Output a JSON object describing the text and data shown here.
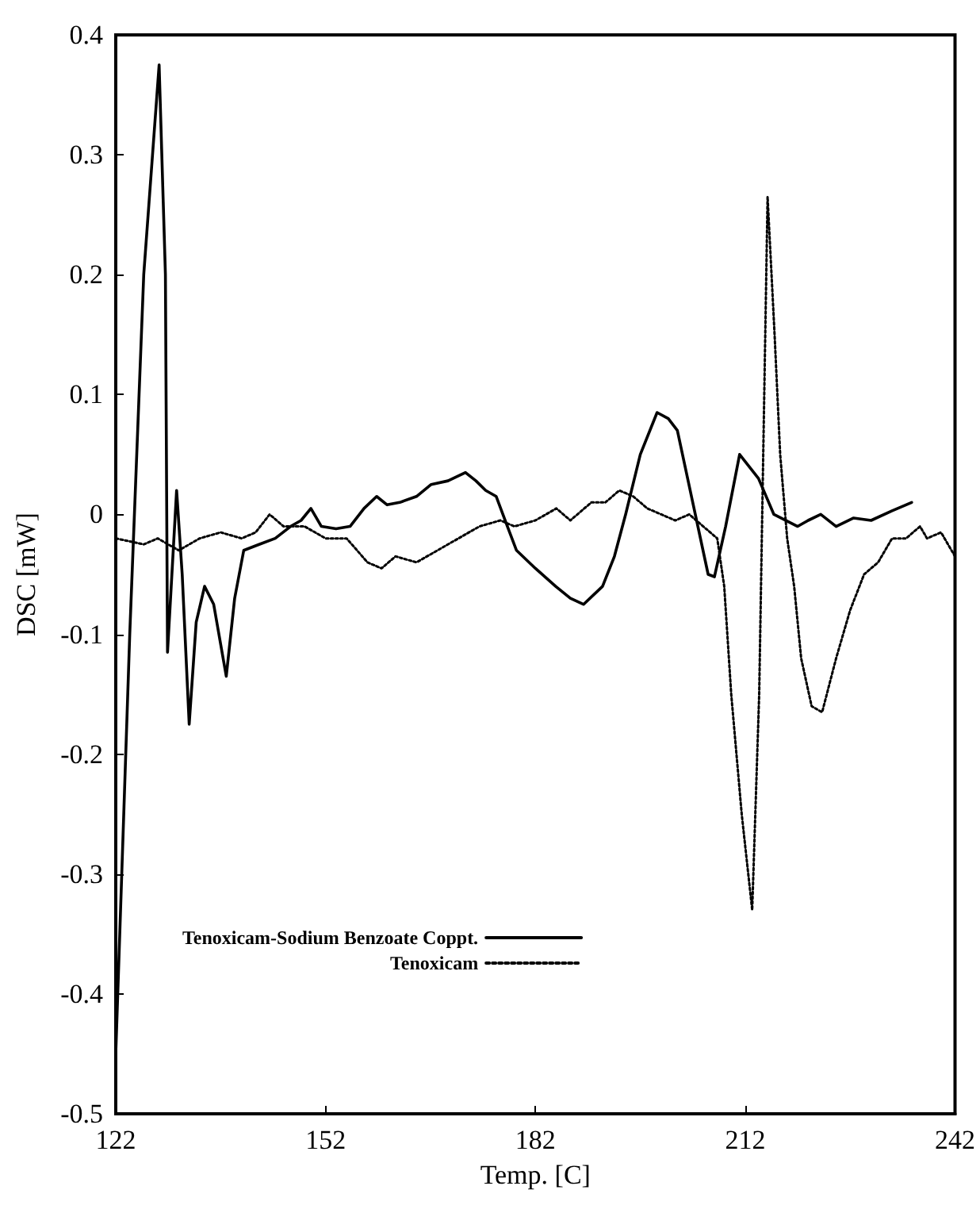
{
  "chart_data": {
    "type": "line",
    "xlabel": "Temp. [C]",
    "ylabel": "DSC [mW]",
    "xlim": [
      122,
      242
    ],
    "xticks": [
      122,
      152,
      182,
      212,
      242
    ],
    "ylim": [
      -0.5,
      0.4
    ],
    "yticks": [
      -0.5,
      -0.4,
      -0.3,
      -0.2,
      -0.1,
      0,
      0.1,
      0.2,
      0.3,
      0.4
    ],
    "grid": false,
    "legend": "bottom left",
    "marker": "none",
    "series": [
      {
        "name": "Tenoxicam-Sodium Benzoate Coppt.",
        "color": "#000000",
        "line_style": "solid",
        "x": [
          122,
          124,
          126,
          128.2,
          129.1,
          129.4,
          130.7,
          131.5,
          132.5,
          133.5,
          134.7,
          136,
          137.8,
          139,
          140.3,
          142.5,
          144.8,
          147,
          148.5,
          149.9,
          151.4,
          153.5,
          155.5,
          157.5,
          159.3,
          160.8,
          162.6,
          165,
          167.1,
          169.5,
          172,
          173.5,
          174.9,
          176.4,
          178,
          179.3,
          182,
          184.9,
          187,
          188.9,
          191.6,
          193.3,
          194.9,
          197,
          199.4,
          201,
          202.3,
          204.5,
          206.7,
          207.6,
          209.2,
          211.2,
          213.9,
          216.1,
          219.5,
          221,
          222.8,
          225,
          227.5,
          230,
          233,
          235.8
        ],
        "values": [
          -0.45,
          -0.1,
          0.2,
          0.375,
          0.2,
          -0.115,
          0.02,
          -0.05,
          -0.175,
          -0.09,
          -0.06,
          -0.075,
          -0.135,
          -0.07,
          -0.03,
          -0.025,
          -0.02,
          -0.01,
          -0.005,
          0.005,
          -0.01,
          -0.012,
          -0.01,
          0.005,
          0.015,
          0.008,
          0.01,
          0.015,
          0.025,
          0.028,
          0.035,
          0.028,
          0.02,
          0.015,
          -0.01,
          -0.03,
          -0.045,
          -0.06,
          -0.07,
          -0.075,
          -0.06,
          -0.035,
          0,
          0.05,
          0.085,
          0.08,
          0.07,
          0.01,
          -0.05,
          -0.052,
          -0.01,
          0.05,
          0.03,
          0,
          -0.01,
          -0.005,
          0,
          -0.01,
          -0.003,
          -0.005,
          0.003,
          0.01
        ]
      },
      {
        "name": "Tenoxicam",
        "color": "#000000",
        "line_style": "dotted",
        "x": [
          122,
          126,
          128,
          131,
          134,
          137,
          140,
          142,
          144,
          146,
          149,
          152,
          155,
          158,
          160,
          162,
          165,
          168,
          171,
          174,
          177,
          179,
          182,
          185,
          187,
          190,
          192,
          194,
          196,
          198,
          200,
          202,
          204,
          206,
          208,
          209,
          210,
          211.5,
          213,
          214,
          215.2,
          216.2,
          217,
          218,
          219,
          220,
          221.5,
          223,
          225,
          227,
          229,
          231,
          233,
          235,
          237,
          238,
          240,
          242
        ],
        "values": [
          -0.02,
          -0.025,
          -0.02,
          -0.03,
          -0.02,
          -0.015,
          -0.02,
          -0.015,
          0,
          -0.01,
          -0.01,
          -0.02,
          -0.02,
          -0.04,
          -0.045,
          -0.035,
          -0.04,
          -0.03,
          -0.02,
          -0.01,
          -0.005,
          -0.01,
          -0.005,
          0.005,
          -0.005,
          0.01,
          0.01,
          0.02,
          0.015,
          0.005,
          0,
          -0.005,
          0,
          -0.01,
          -0.02,
          -0.06,
          -0.15,
          -0.25,
          -0.33,
          -0.15,
          0.265,
          0.15,
          0.05,
          -0.02,
          -0.06,
          -0.12,
          -0.16,
          -0.165,
          -0.12,
          -0.08,
          -0.05,
          -0.04,
          -0.02,
          -0.02,
          -0.01,
          -0.02,
          -0.015,
          -0.035
        ]
      }
    ]
  }
}
